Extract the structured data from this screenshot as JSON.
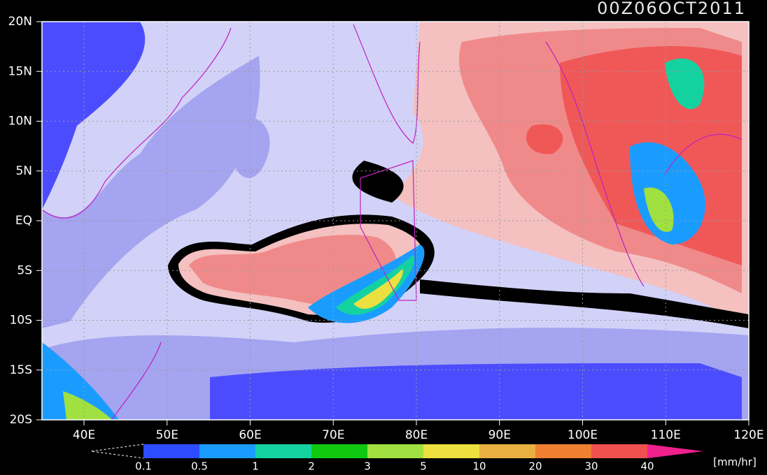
{
  "title": "00Z06OCT2011",
  "lat_labels": [
    "20N",
    "15N",
    "10N",
    "5N",
    "EQ",
    "5S",
    "10S",
    "15S",
    "20S"
  ],
  "lon_labels": [
    "40E",
    "50E",
    "60E",
    "70E",
    "80E",
    "90E",
    "100E",
    "110E",
    "120E"
  ],
  "colorbar": {
    "levels": [
      "0.1",
      "0.5",
      "1",
      "2",
      "3",
      "5",
      "10",
      "20",
      "30",
      "40"
    ],
    "colors": [
      "#2d4cff",
      "#1a9cff",
      "#14d2a0",
      "#10c810",
      "#a0e040",
      "#ece040",
      "#e8b040",
      "#f08030",
      "#f05050"
    ],
    "over_color": "#f0208c"
  },
  "unit": "[mm/hr]"
}
